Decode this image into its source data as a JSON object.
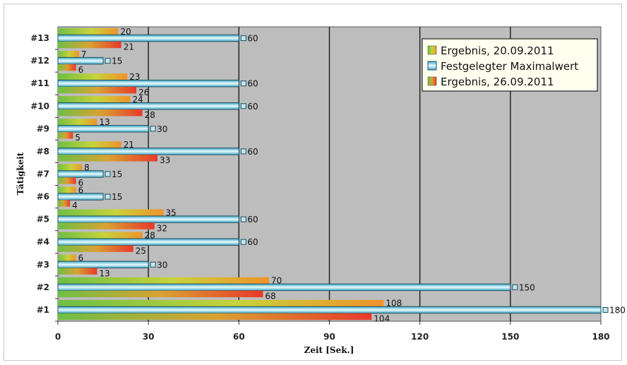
{
  "chart_data": {
    "type": "bar",
    "orientation": "horizontal",
    "categories": [
      "#1",
      "#2",
      "#3",
      "#4",
      "#5",
      "#6",
      "#7",
      "#8",
      "#9",
      "#10",
      "#11",
      "#12",
      "#13"
    ],
    "series": [
      {
        "name": "Ergebnis, 20.09.2011",
        "values": [
          108,
          70,
          6,
          28,
          35,
          6,
          8,
          21,
          13,
          24,
          23,
          7,
          20
        ]
      },
      {
        "name": "Festgelegter Maximalwert",
        "values": [
          180,
          150,
          30,
          60,
          60,
          15,
          15,
          60,
          30,
          60,
          60,
          15,
          60
        ]
      },
      {
        "name": "Ergebnis, 26.09.2011",
        "values": [
          104,
          68,
          13,
          25,
          32,
          4,
          6,
          33,
          5,
          28,
          26,
          6,
          21
        ]
      }
    ],
    "xlabel": "Zeit [Sek.]",
    "ylabel": "Tätigkeit",
    "xlim": [
      0,
      180
    ],
    "xticks": [
      0,
      30,
      60,
      90,
      120,
      150,
      180
    ],
    "grid": true,
    "legend_position": "top-right",
    "colors": {
      "plot_background": "#bdbdbd",
      "ergebnis_start": "#7cc242",
      "ergebnis1_end": "#f0922a",
      "ergebnis2_end": "#e8392b",
      "maximal_fill": "#5cc6dc",
      "maximal_border": "#1f4e60",
      "gridline": "#222222"
    }
  }
}
